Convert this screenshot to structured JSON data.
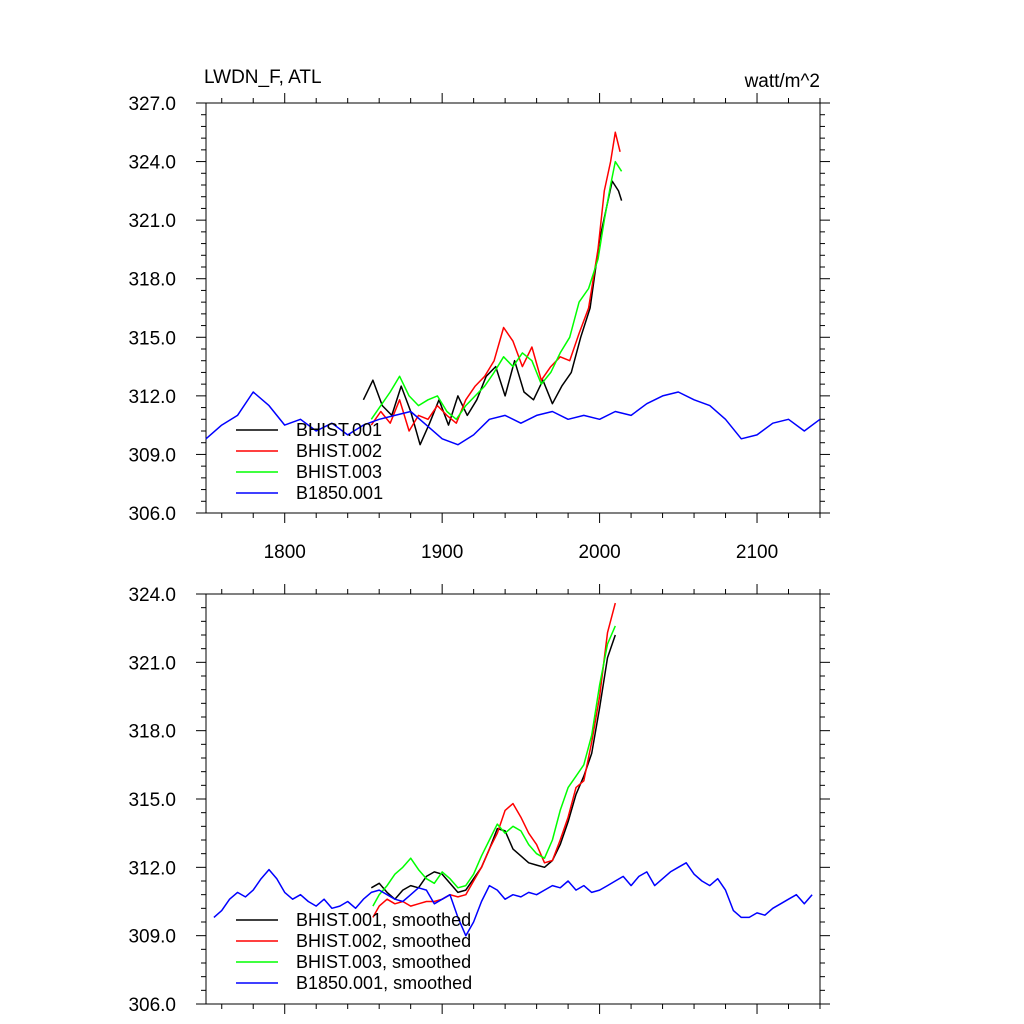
{
  "chart_data": [
    {
      "type": "line",
      "title": "LWDN_F, ATL",
      "units": "watt/m^2",
      "xlim": [
        1750,
        2140
      ],
      "ylim": [
        306.0,
        327.0
      ],
      "xticks": [
        1800,
        1900,
        2000,
        2100
      ],
      "xtick_labels": [
        "1800",
        "1900",
        "2000",
        "2100"
      ],
      "yticks": [
        306.0,
        309.0,
        312.0,
        315.0,
        318.0,
        321.0,
        324.0,
        327.0
      ],
      "ytick_labels": [
        "306.0",
        "309.0",
        "312.0",
        "315.0",
        "318.0",
        "321.0",
        "324.0",
        "327.0"
      ],
      "legend_placement": "bottom-left",
      "series": [
        {
          "name": "BHIST.001",
          "color": "#000000",
          "x": [
            1850,
            1856,
            1862,
            1868,
            1874,
            1880,
            1886,
            1892,
            1898,
            1904,
            1910,
            1916,
            1922,
            1928,
            1934,
            1940,
            1946,
            1952,
            1958,
            1964,
            1970,
            1976,
            1982,
            1988,
            1994,
            2000,
            2004,
            2008,
            2012,
            2014
          ],
          "y": [
            311.8,
            312.8,
            311.5,
            311.0,
            312.5,
            311.2,
            309.5,
            310.6,
            311.8,
            310.5,
            312.0,
            311.0,
            311.8,
            313.0,
            313.5,
            312.0,
            313.8,
            312.2,
            311.8,
            312.8,
            311.6,
            312.5,
            313.2,
            315.0,
            316.5,
            320.0,
            321.5,
            323.0,
            322.5,
            322.0
          ]
        },
        {
          "name": "BHIST.002",
          "color": "#ff0000",
          "x": [
            1855,
            1861,
            1867,
            1873,
            1879,
            1885,
            1891,
            1897,
            1903,
            1909,
            1915,
            1921,
            1927,
            1933,
            1939,
            1945,
            1951,
            1957,
            1963,
            1969,
            1975,
            1981,
            1987,
            1993,
            1999,
            2003,
            2007,
            2010,
            2013
          ],
          "y": [
            310.5,
            311.2,
            310.6,
            311.8,
            310.2,
            311.0,
            310.8,
            311.5,
            311.0,
            310.6,
            311.8,
            312.5,
            313.0,
            313.8,
            315.5,
            314.8,
            313.5,
            314.5,
            312.8,
            313.5,
            314.0,
            313.8,
            315.2,
            316.5,
            319.5,
            322.5,
            324.0,
            325.5,
            324.5
          ]
        },
        {
          "name": "BHIST.003",
          "color": "#00ff00",
          "x": [
            1855,
            1861,
            1867,
            1873,
            1879,
            1885,
            1891,
            1897,
            1903,
            1909,
            1915,
            1921,
            1927,
            1933,
            1939,
            1945,
            1951,
            1957,
            1963,
            1969,
            1975,
            1981,
            1987,
            1993,
            1999,
            2003,
            2007,
            2010,
            2014
          ],
          "y": [
            310.8,
            311.5,
            312.2,
            313.0,
            312.0,
            311.5,
            311.8,
            312.0,
            311.2,
            310.8,
            311.5,
            312.0,
            312.5,
            313.2,
            314.0,
            313.5,
            314.2,
            313.8,
            312.6,
            313.2,
            314.2,
            315.0,
            316.8,
            317.5,
            319.0,
            321.0,
            322.8,
            324.0,
            323.5
          ]
        },
        {
          "name": "B1850.001",
          "color": "#0000ff",
          "x": [
            1750,
            1760,
            1770,
            1780,
            1790,
            1800,
            1810,
            1820,
            1830,
            1840,
            1850,
            1860,
            1870,
            1880,
            1890,
            1900,
            1910,
            1920,
            1930,
            1940,
            1950,
            1960,
            1970,
            1980,
            1990,
            2000,
            2010,
            2020,
            2030,
            2040,
            2050,
            2060,
            2070,
            2080,
            2090,
            2100,
            2110,
            2120,
            2130,
            2140
          ],
          "y": [
            309.8,
            310.5,
            311.0,
            312.2,
            311.5,
            310.5,
            310.8,
            310.2,
            310.6,
            310.0,
            310.5,
            310.8,
            311.0,
            311.2,
            310.5,
            309.8,
            309.5,
            310.0,
            310.8,
            311.0,
            310.6,
            311.0,
            311.2,
            310.8,
            311.0,
            310.8,
            311.2,
            311.0,
            311.6,
            312.0,
            312.2,
            311.8,
            311.5,
            310.8,
            309.8,
            310.0,
            310.6,
            310.8,
            310.2,
            310.8
          ]
        }
      ]
    },
    {
      "type": "line",
      "xlim": [
        1750,
        2140
      ],
      "ylim": [
        306.0,
        324.0
      ],
      "xticks": [
        1800,
        1900,
        2000,
        2100
      ],
      "yticks": [
        306.0,
        309.0,
        312.0,
        315.0,
        318.0,
        321.0,
        324.0
      ],
      "ytick_labels": [
        "306.0",
        "309.0",
        "312.0",
        "315.0",
        "318.0",
        "321.0",
        "324.0"
      ],
      "legend_placement": "bottom-left",
      "series": [
        {
          "name": "BHIST.001, smoothed",
          "color": "#000000",
          "x": [
            1855,
            1860,
            1865,
            1870,
            1875,
            1880,
            1885,
            1890,
            1895,
            1900,
            1905,
            1910,
            1915,
            1920,
            1925,
            1930,
            1935,
            1940,
            1945,
            1950,
            1955,
            1960,
            1965,
            1970,
            1975,
            1980,
            1985,
            1990,
            1995,
            2000,
            2005,
            2010
          ],
          "y": [
            311.1,
            311.3,
            310.9,
            310.6,
            311.0,
            311.2,
            311.1,
            311.6,
            311.8,
            311.7,
            311.3,
            310.9,
            311.0,
            311.5,
            312.0,
            312.8,
            313.7,
            313.6,
            312.8,
            312.5,
            312.2,
            312.1,
            312.0,
            312.3,
            313.0,
            314.0,
            315.2,
            316.0,
            317.0,
            319.0,
            321.2,
            322.2
          ]
        },
        {
          "name": "BHIST.002, smoothed",
          "color": "#ff0000",
          "x": [
            1856,
            1860,
            1865,
            1870,
            1875,
            1880,
            1885,
            1890,
            1895,
            1900,
            1905,
            1910,
            1915,
            1920,
            1925,
            1930,
            1935,
            1940,
            1945,
            1950,
            1955,
            1960,
            1965,
            1970,
            1975,
            1980,
            1985,
            1990,
            1995,
            2000,
            2005,
            2010
          ],
          "y": [
            309.8,
            310.3,
            310.6,
            310.4,
            310.5,
            310.3,
            310.4,
            310.5,
            310.5,
            310.6,
            310.8,
            310.7,
            310.8,
            311.4,
            312.0,
            312.8,
            313.5,
            314.5,
            314.8,
            314.2,
            313.5,
            313.0,
            312.2,
            312.3,
            313.2,
            314.2,
            315.5,
            315.8,
            317.5,
            319.5,
            322.3,
            323.6
          ]
        },
        {
          "name": "BHIST.003, smoothed",
          "color": "#00ff00",
          "x": [
            1856,
            1860,
            1865,
            1870,
            1875,
            1880,
            1885,
            1890,
            1895,
            1900,
            1905,
            1910,
            1915,
            1920,
            1925,
            1930,
            1935,
            1940,
            1945,
            1950,
            1955,
            1960,
            1965,
            1970,
            1975,
            1980,
            1985,
            1990,
            1995,
            2000,
            2005,
            2010
          ],
          "y": [
            310.3,
            310.8,
            311.2,
            311.7,
            312.0,
            312.4,
            311.9,
            311.5,
            311.3,
            311.8,
            311.5,
            311.1,
            311.2,
            311.7,
            312.5,
            313.2,
            313.9,
            313.5,
            313.8,
            313.6,
            313.0,
            312.6,
            312.4,
            313.2,
            314.5,
            315.5,
            316.0,
            316.5,
            317.8,
            320.0,
            321.8,
            322.6
          ]
        },
        {
          "name": "B1850.001, smoothed",
          "color": "#0000ff",
          "x": [
            1755,
            1760,
            1765,
            1770,
            1775,
            1780,
            1785,
            1790,
            1795,
            1800,
            1805,
            1810,
            1815,
            1820,
            1825,
            1830,
            1835,
            1840,
            1845,
            1850,
            1855,
            1860,
            1865,
            1870,
            1875,
            1880,
            1885,
            1890,
            1895,
            1900,
            1905,
            1910,
            1915,
            1920,
            1925,
            1930,
            1935,
            1940,
            1945,
            1950,
            1955,
            1960,
            1965,
            1970,
            1975,
            1980,
            1985,
            1990,
            1995,
            2000,
            2005,
            2010,
            2015,
            2020,
            2025,
            2030,
            2035,
            2040,
            2045,
            2050,
            2055,
            2060,
            2065,
            2070,
            2075,
            2080,
            2085,
            2090,
            2095,
            2100,
            2105,
            2110,
            2115,
            2120,
            2125,
            2130,
            2135
          ],
          "y": [
            309.8,
            310.1,
            310.6,
            310.9,
            310.7,
            311.0,
            311.5,
            311.9,
            311.5,
            310.9,
            310.6,
            310.8,
            310.5,
            310.3,
            310.6,
            310.2,
            310.3,
            310.5,
            310.2,
            310.6,
            310.9,
            311.0,
            310.8,
            310.6,
            310.5,
            310.8,
            311.1,
            311.0,
            310.4,
            310.6,
            310.8,
            309.8,
            309.0,
            309.6,
            310.5,
            311.2,
            311.0,
            310.6,
            310.8,
            310.7,
            310.9,
            310.8,
            311.0,
            311.2,
            311.1,
            311.4,
            311.0,
            311.2,
            310.9,
            311.0,
            311.2,
            311.4,
            311.6,
            311.2,
            311.6,
            311.8,
            311.2,
            311.5,
            311.8,
            312.0,
            312.2,
            311.7,
            311.4,
            311.2,
            311.5,
            311.0,
            310.1,
            309.8,
            309.8,
            310.0,
            309.9,
            310.2,
            310.4,
            310.6,
            310.8,
            310.4,
            310.8
          ]
        }
      ]
    }
  ]
}
